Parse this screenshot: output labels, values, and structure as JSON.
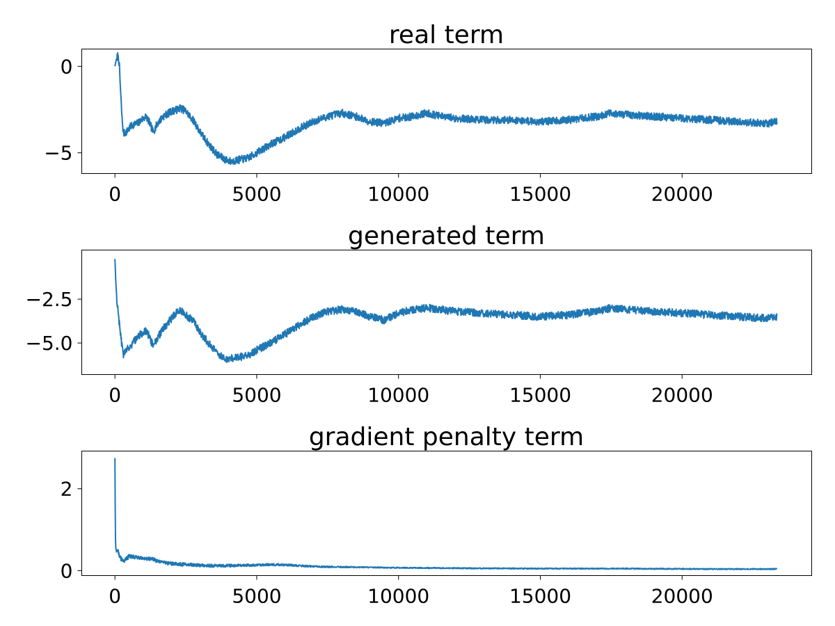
{
  "chart_data": [
    {
      "type": "line",
      "title": "real term",
      "xlabel": "",
      "ylabel": "",
      "xlim": [
        -1170,
        24570
      ],
      "ylim": [
        -6.2,
        1.0
      ],
      "x_ticks": [
        0,
        5000,
        10000,
        15000,
        20000
      ],
      "x_tick_labels": [
        "0",
        "5000",
        "10000",
        "15000",
        "20000"
      ],
      "y_ticks": [
        0,
        -5
      ],
      "y_tick_labels": [
        "0",
        "−5"
      ],
      "grid": false,
      "line_color": "#1f77b4",
      "noise_amplitude": 0.22,
      "series": [
        {
          "x": [
            0,
            50,
            100,
            150,
            200,
            250,
            300,
            400,
            600,
            800,
            1000,
            1100,
            1200,
            1350,
            1500,
            1700,
            2000,
            2200,
            2300,
            2500,
            2800,
            3000,
            3300,
            3600,
            3900,
            4100,
            4400,
            4700,
            5000,
            5500,
            6000,
            6500,
            7000,
            7500,
            8000,
            8500,
            9000,
            9500,
            10000,
            10500,
            11000,
            11500,
            12000,
            13000,
            14000,
            15000,
            16000,
            17000,
            17500,
            18000,
            19000,
            20000,
            21000,
            22000,
            23000,
            23350
          ],
          "y": [
            0.0,
            0.4,
            0.6,
            0.2,
            -1.5,
            -3.0,
            -3.9,
            -3.8,
            -3.4,
            -3.3,
            -3.0,
            -2.9,
            -3.2,
            -3.8,
            -3.3,
            -2.9,
            -2.6,
            -2.5,
            -2.4,
            -2.6,
            -3.2,
            -3.8,
            -4.5,
            -5.1,
            -5.4,
            -5.5,
            -5.4,
            -5.3,
            -5.0,
            -4.5,
            -4.1,
            -3.6,
            -3.2,
            -2.9,
            -2.7,
            -2.9,
            -3.2,
            -3.3,
            -3.0,
            -2.9,
            -2.7,
            -2.9,
            -3.0,
            -3.1,
            -3.1,
            -3.2,
            -3.1,
            -2.9,
            -2.7,
            -2.8,
            -2.9,
            -3.0,
            -3.1,
            -3.2,
            -3.3,
            -3.2
          ]
        }
      ]
    },
    {
      "type": "line",
      "title": "generated term",
      "xlabel": "",
      "ylabel": "",
      "xlim": [
        -1170,
        24570
      ],
      "ylim": [
        -6.8,
        0.3
      ],
      "x_ticks": [
        0,
        5000,
        10000,
        15000,
        20000
      ],
      "x_tick_labels": [
        "0",
        "5000",
        "10000",
        "15000",
        "20000"
      ],
      "y_ticks": [
        -2.5,
        -5.0
      ],
      "y_tick_labels": [
        "−2.5",
        "−5.0"
      ],
      "grid": false,
      "line_color": "#1f77b4",
      "noise_amplitude": 0.22,
      "series": [
        {
          "x": [
            0,
            30,
            80,
            150,
            250,
            300,
            400,
            600,
            800,
            1000,
            1100,
            1200,
            1350,
            1500,
            1700,
            2000,
            2200,
            2300,
            2500,
            2800,
            3000,
            3300,
            3600,
            3900,
            4100,
            4400,
            4700,
            5000,
            5500,
            6000,
            6500,
            7000,
            7500,
            8000,
            8500,
            9000,
            9500,
            10000,
            10500,
            11000,
            11500,
            12000,
            13000,
            14000,
            15000,
            16000,
            17000,
            17500,
            18000,
            19000,
            20000,
            21000,
            22000,
            23000,
            23350
          ],
          "y": [
            -0.2,
            -1.5,
            -2.8,
            -3.8,
            -5.2,
            -5.7,
            -5.4,
            -5.1,
            -4.6,
            -4.4,
            -4.3,
            -4.6,
            -5.2,
            -4.7,
            -4.2,
            -3.6,
            -3.2,
            -3.1,
            -3.4,
            -3.8,
            -4.4,
            -5.0,
            -5.6,
            -5.9,
            -5.9,
            -5.8,
            -5.7,
            -5.4,
            -5.0,
            -4.5,
            -4.0,
            -3.5,
            -3.2,
            -3.1,
            -3.2,
            -3.5,
            -3.7,
            -3.3,
            -3.1,
            -3.0,
            -3.1,
            -3.2,
            -3.3,
            -3.4,
            -3.5,
            -3.4,
            -3.2,
            -3.0,
            -3.1,
            -3.2,
            -3.3,
            -3.4,
            -3.5,
            -3.6,
            -3.5
          ]
        }
      ]
    },
    {
      "type": "line",
      "title": "gradient penalty term",
      "xlabel": "",
      "ylabel": "",
      "xlim": [
        -1170,
        24570
      ],
      "ylim": [
        -0.12,
        2.92
      ],
      "x_ticks": [
        0,
        5000,
        10000,
        15000,
        20000
      ],
      "x_tick_labels": [
        "0",
        "5000",
        "10000",
        "15000",
        "20000"
      ],
      "y_ticks": [
        2,
        0
      ],
      "y_tick_labels": [
        "2",
        "0"
      ],
      "grid": false,
      "line_color": "#1f77b4",
      "noise_amplitude": 0.05,
      "series": [
        {
          "x": [
            0,
            15,
            30,
            60,
            100,
            200,
            300,
            500,
            800,
            1000,
            1300,
            1500,
            2000,
            2500,
            3000,
            3500,
            4000,
            5000,
            5500,
            6000,
            7000,
            8000,
            10000,
            12000,
            15000,
            18000,
            21000,
            23350
          ],
          "y": [
            2.75,
            0.9,
            0.55,
            0.45,
            0.5,
            0.3,
            0.22,
            0.35,
            0.33,
            0.28,
            0.3,
            0.22,
            0.17,
            0.15,
            0.13,
            0.12,
            0.12,
            0.14,
            0.15,
            0.14,
            0.1,
            0.09,
            0.07,
            0.06,
            0.05,
            0.05,
            0.04,
            0.04
          ]
        }
      ]
    }
  ]
}
